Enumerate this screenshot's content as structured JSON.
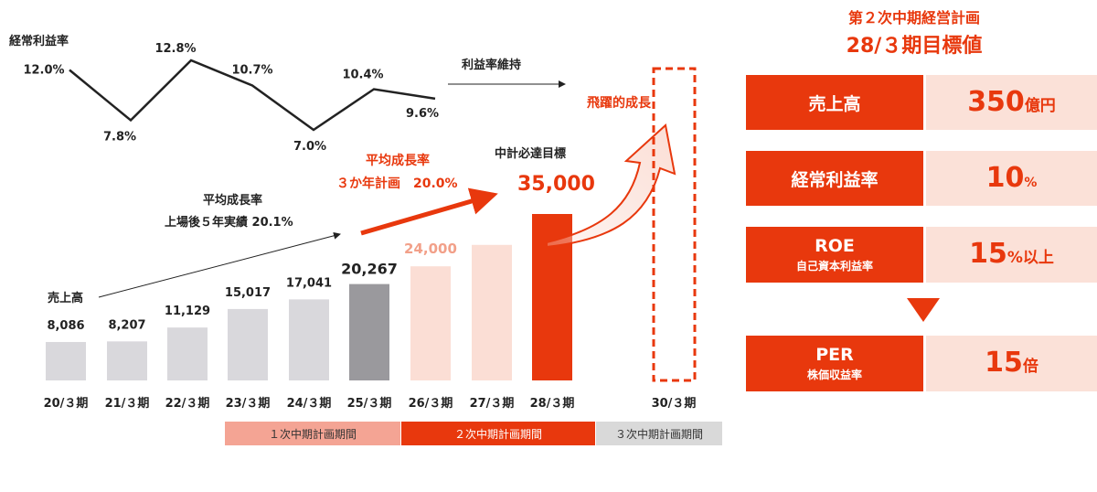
{
  "chart_data": {
    "type": "bar",
    "categories": [
      "20/３期",
      "21/３期",
      "22/３期",
      "23/３期",
      "24/３期",
      "25/３期",
      "26/３期",
      "27/３期",
      "28/３期",
      "30/３期"
    ],
    "sales": {
      "label": "売上高",
      "values": [
        8086,
        8207,
        11129,
        15017,
        17041,
        20267,
        24000,
        null,
        35000,
        null
      ],
      "value_labels": [
        "8,086",
        "8,207",
        "11,129",
        "15,017",
        "17,041",
        "20,267",
        "24,000",
        "",
        "35,000",
        ""
      ],
      "status": [
        "actual",
        "actual",
        "actual",
        "actual",
        "actual",
        "latest",
        "plan",
        "plan",
        "target",
        "leap"
      ]
    },
    "profit_margin": {
      "label": "経常利益率",
      "values": [
        12.0,
        7.8,
        12.8,
        10.7,
        7.0,
        10.4,
        9.6
      ],
      "value_labels": [
        "12.0%",
        "7.8%",
        "12.8%",
        "10.7%",
        "7.0%",
        "10.4%",
        "9.6%"
      ],
      "trend_label": "利益率維持"
    },
    "annotations": {
      "growth_actual": [
        "平均成長率",
        "上場後５年実績 20.1%"
      ],
      "growth_plan": [
        "平均成長率",
        "３か年計画　20.0%"
      ],
      "target_label": "中計必達目標",
      "target_value": "35,000",
      "leap_label": "飛躍的成長"
    },
    "phases": [
      {
        "label": "１次中期計画期間",
        "color": "#f4a494",
        "text_color": "#333333"
      },
      {
        "label": "２次中期計画期間",
        "color": "#e8380d",
        "text_color": "#ffffff"
      },
      {
        "label": "３次中期計画期間",
        "color": "#d9d9d9",
        "text_color": "#333333"
      }
    ],
    "colors": {
      "actual": "#d9d8dc",
      "latest": "#9a999d",
      "plan": "#fbded5",
      "target": "#e8380d",
      "accent": "#e8380d"
    }
  },
  "target_panel": {
    "title": [
      "第２次中期経営計画",
      "28/３期目標値"
    ],
    "kpis": [
      {
        "label": "売上高",
        "sub": "",
        "value": "350",
        "unit": "億円"
      },
      {
        "label": "経常利益率",
        "sub": "",
        "value": "10",
        "unit": "%"
      },
      {
        "label": "ROE",
        "sub": "自己資本利益率",
        "value": "15",
        "unit": "%以上"
      },
      {
        "label": "PER",
        "sub": "株価収益率",
        "value": "15",
        "unit": "倍"
      }
    ]
  }
}
